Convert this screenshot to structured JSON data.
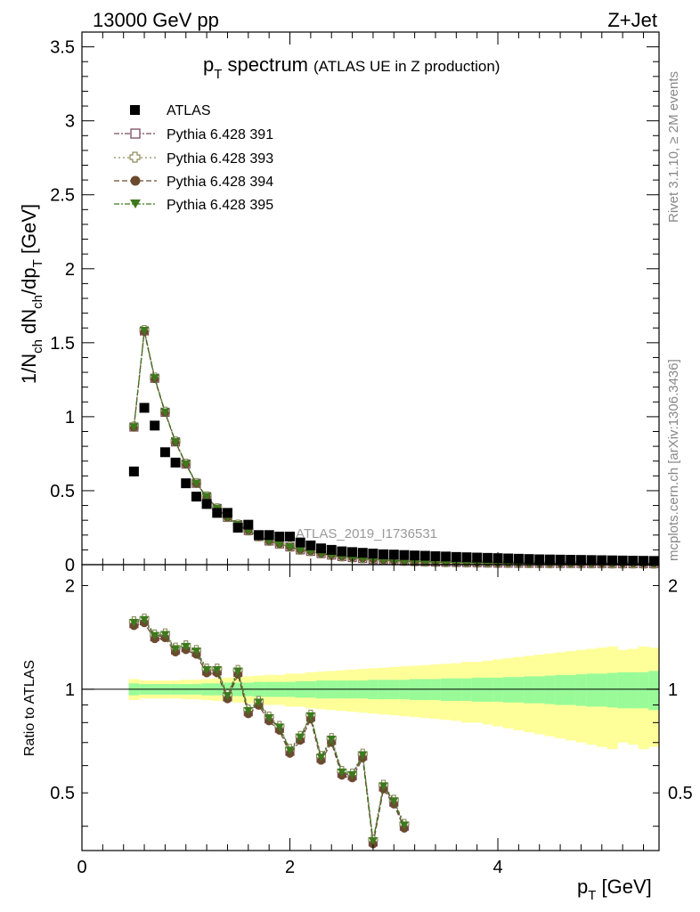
{
  "header": {
    "left": "13000 GeV pp",
    "right": "Z+Jet"
  },
  "title": {
    "main": "p",
    "main_sub": "T",
    "main_rest": " spectrum",
    "paren": "(ATLAS UE in Z production)"
  },
  "side_texts": {
    "rivet": "Rivet 3.1.10, ≥ 2M events",
    "mcplots": "mcplots.cern.ch [arXiv:1306.3436]"
  },
  "analysis_label": "ATLAS_2019_I1736531",
  "axes": {
    "top_ylabel": "1/N_ch dN_ch/dp_T [GeV]",
    "bottom_ylabel": "Ratio to ATLAS",
    "xlabel": "p_T [GeV]",
    "top_yticks": [
      "0",
      "0.5",
      "1",
      "1.5",
      "2",
      "2.5",
      "3",
      "3.5"
    ],
    "bottom_yticks": [
      "0.5",
      "1",
      "2"
    ],
    "bottom_yticks_right": [
      "0.5",
      "1",
      "2"
    ],
    "xticks": [
      "0",
      "2",
      "4"
    ]
  },
  "legend": [
    {
      "label": "ATLAS",
      "marker": "square-filled",
      "color": "#000000"
    },
    {
      "label": "Pythia 6.428 391",
      "marker": "square-open",
      "color": "#7a4a5e"
    },
    {
      "label": "Pythia 6.428 393",
      "marker": "cross-open",
      "color": "#8a8a5a"
    },
    {
      "label": "Pythia 6.428 394",
      "marker": "circle-filled",
      "color": "#6b4a2e"
    },
    {
      "label": "Pythia 6.428 395",
      "marker": "triangle-down-filled",
      "color": "#3d7a1e"
    }
  ],
  "colors": {
    "band_inner": "#98fb98",
    "band_outer": "#ffff99",
    "frame": "#000000"
  },
  "chart_data": {
    "type": "scatter",
    "xlabel": "p_T [GeV]",
    "ylabel": "1/N_ch dN_ch/dp_T [GeV]",
    "xlim": [
      0,
      5.55
    ],
    "ylim": [
      0,
      3.6
    ],
    "ratio_ylim": [
      0.34,
      2.3
    ],
    "ratio_scale": "log",
    "x": [
      0.5,
      0.6,
      0.7,
      0.8,
      0.9,
      1.0,
      1.1,
      1.2,
      1.3,
      1.4,
      1.5,
      1.6,
      1.7,
      1.8,
      1.9,
      2.0,
      2.1,
      2.2,
      2.3,
      2.4,
      2.5,
      2.6,
      2.7,
      2.8,
      2.9,
      3.0,
      3.1,
      3.2,
      3.3,
      3.4,
      3.5,
      3.6,
      3.7,
      3.8,
      3.9,
      4.0,
      4.1,
      4.2,
      4.3,
      4.4,
      4.5,
      4.6,
      4.7,
      4.8,
      4.9,
      5.0,
      5.1,
      5.2,
      5.3,
      5.4,
      5.5
    ],
    "atlas": [
      0.63,
      1.06,
      0.94,
      0.76,
      0.69,
      0.55,
      0.46,
      0.41,
      0.35,
      0.35,
      0.25,
      0.27,
      0.2,
      0.2,
      0.19,
      0.19,
      0.15,
      0.13,
      0.11,
      0.1,
      0.09,
      0.085,
      0.08,
      0.075,
      0.07,
      0.068,
      0.065,
      0.062,
      0.06,
      0.057,
      0.055,
      0.052,
      0.05,
      0.048,
      0.046,
      0.044,
      0.042,
      0.04,
      0.038,
      0.036,
      0.035,
      0.034,
      0.033,
      0.032,
      0.031,
      0.03,
      0.029,
      0.028,
      0.027,
      0.026,
      0.025
    ],
    "mc_x": [
      0.5,
      0.6,
      0.7,
      0.8,
      0.9,
      1.0,
      1.1,
      1.2,
      1.3,
      1.4,
      1.5,
      1.6,
      1.7,
      1.8,
      1.9,
      2.0,
      2.1,
      2.2,
      2.3,
      2.4,
      2.5,
      2.6,
      2.7,
      2.8,
      2.9,
      3.0,
      3.1,
      3.2,
      3.3,
      3.4,
      3.5,
      3.6,
      3.7,
      3.8,
      3.9,
      4.0,
      4.1,
      4.2,
      4.3,
      4.4,
      4.5,
      4.6,
      4.7,
      4.8,
      4.9,
      5.0,
      5.1,
      5.2,
      5.3,
      5.4,
      5.5
    ],
    "mc": [
      0.93,
      1.58,
      1.26,
      1.03,
      0.83,
      0.68,
      0.55,
      0.46,
      0.38,
      0.32,
      0.27,
      0.23,
      0.19,
      0.16,
      0.14,
      0.12,
      0.1,
      0.09,
      0.075,
      0.065,
      0.055,
      0.048,
      0.042,
      0.036,
      0.032,
      0.028,
      0.025,
      0.022,
      0.02,
      0.018,
      0.016,
      0.015,
      0.014,
      0.013,
      0.012,
      0.011,
      0.0105,
      0.01,
      0.0095,
      0.009,
      0.0088,
      0.0085,
      0.0082,
      0.008,
      0.0078,
      0.0075,
      0.0072,
      0.007,
      0.0068,
      0.0066,
      0.0064
    ],
    "ratio_x": [
      0.5,
      0.6,
      0.7,
      0.8,
      0.9,
      1.0,
      1.1,
      1.2,
      1.3,
      1.4,
      1.5,
      1.6,
      1.7,
      1.8,
      1.9,
      2.0,
      2.1,
      2.2,
      2.3,
      2.4,
      2.5,
      2.6,
      2.7,
      2.8,
      2.9,
      3.0,
      3.1
    ],
    "ratio": [
      1.55,
      1.58,
      1.42,
      1.43,
      1.3,
      1.32,
      1.28,
      1.13,
      1.13,
      0.95,
      1.12,
      0.86,
      0.91,
      0.82,
      0.77,
      0.66,
      0.72,
      0.83,
      0.63,
      0.71,
      0.57,
      0.56,
      0.64,
      0.36,
      0.52,
      0.47,
      0.4
    ],
    "band_x_edges": [
      0.45,
      0.55,
      0.65,
      0.75,
      0.85,
      0.95,
      1.05,
      1.15,
      1.25,
      1.35,
      1.45,
      1.55,
      1.65,
      1.75,
      1.85,
      1.95,
      2.05,
      2.15,
      2.25,
      2.35,
      2.45,
      2.55,
      2.65,
      2.75,
      2.85,
      2.95,
      3.05,
      3.15,
      3.25,
      3.35,
      3.45,
      3.55,
      3.65,
      3.75,
      3.85,
      3.95,
      4.05,
      4.15,
      4.25,
      4.35,
      4.45,
      4.55,
      4.65,
      4.75,
      4.85,
      4.95,
      5.05,
      5.15,
      5.25,
      5.35,
      5.45,
      5.55
    ],
    "band_inner_half": [
      0.04,
      0.035,
      0.035,
      0.035,
      0.035,
      0.035,
      0.035,
      0.04,
      0.04,
      0.045,
      0.045,
      0.045,
      0.05,
      0.05,
      0.05,
      0.05,
      0.055,
      0.055,
      0.06,
      0.06,
      0.06,
      0.06,
      0.06,
      0.065,
      0.065,
      0.065,
      0.065,
      0.07,
      0.07,
      0.07,
      0.075,
      0.075,
      0.075,
      0.08,
      0.08,
      0.08,
      0.085,
      0.085,
      0.09,
      0.09,
      0.095,
      0.1,
      0.1,
      0.105,
      0.11,
      0.11,
      0.115,
      0.12,
      0.12,
      0.12,
      0.13
    ],
    "band_outer_half": [
      0.07,
      0.06,
      0.06,
      0.06,
      0.06,
      0.065,
      0.065,
      0.07,
      0.075,
      0.08,
      0.085,
      0.09,
      0.095,
      0.1,
      0.1,
      0.11,
      0.11,
      0.12,
      0.125,
      0.13,
      0.135,
      0.14,
      0.145,
      0.15,
      0.155,
      0.16,
      0.165,
      0.17,
      0.175,
      0.18,
      0.185,
      0.19,
      0.2,
      0.2,
      0.21,
      0.22,
      0.23,
      0.24,
      0.25,
      0.26,
      0.27,
      0.28,
      0.29,
      0.3,
      0.31,
      0.32,
      0.33,
      0.3,
      0.31,
      0.33,
      0.32
    ]
  }
}
